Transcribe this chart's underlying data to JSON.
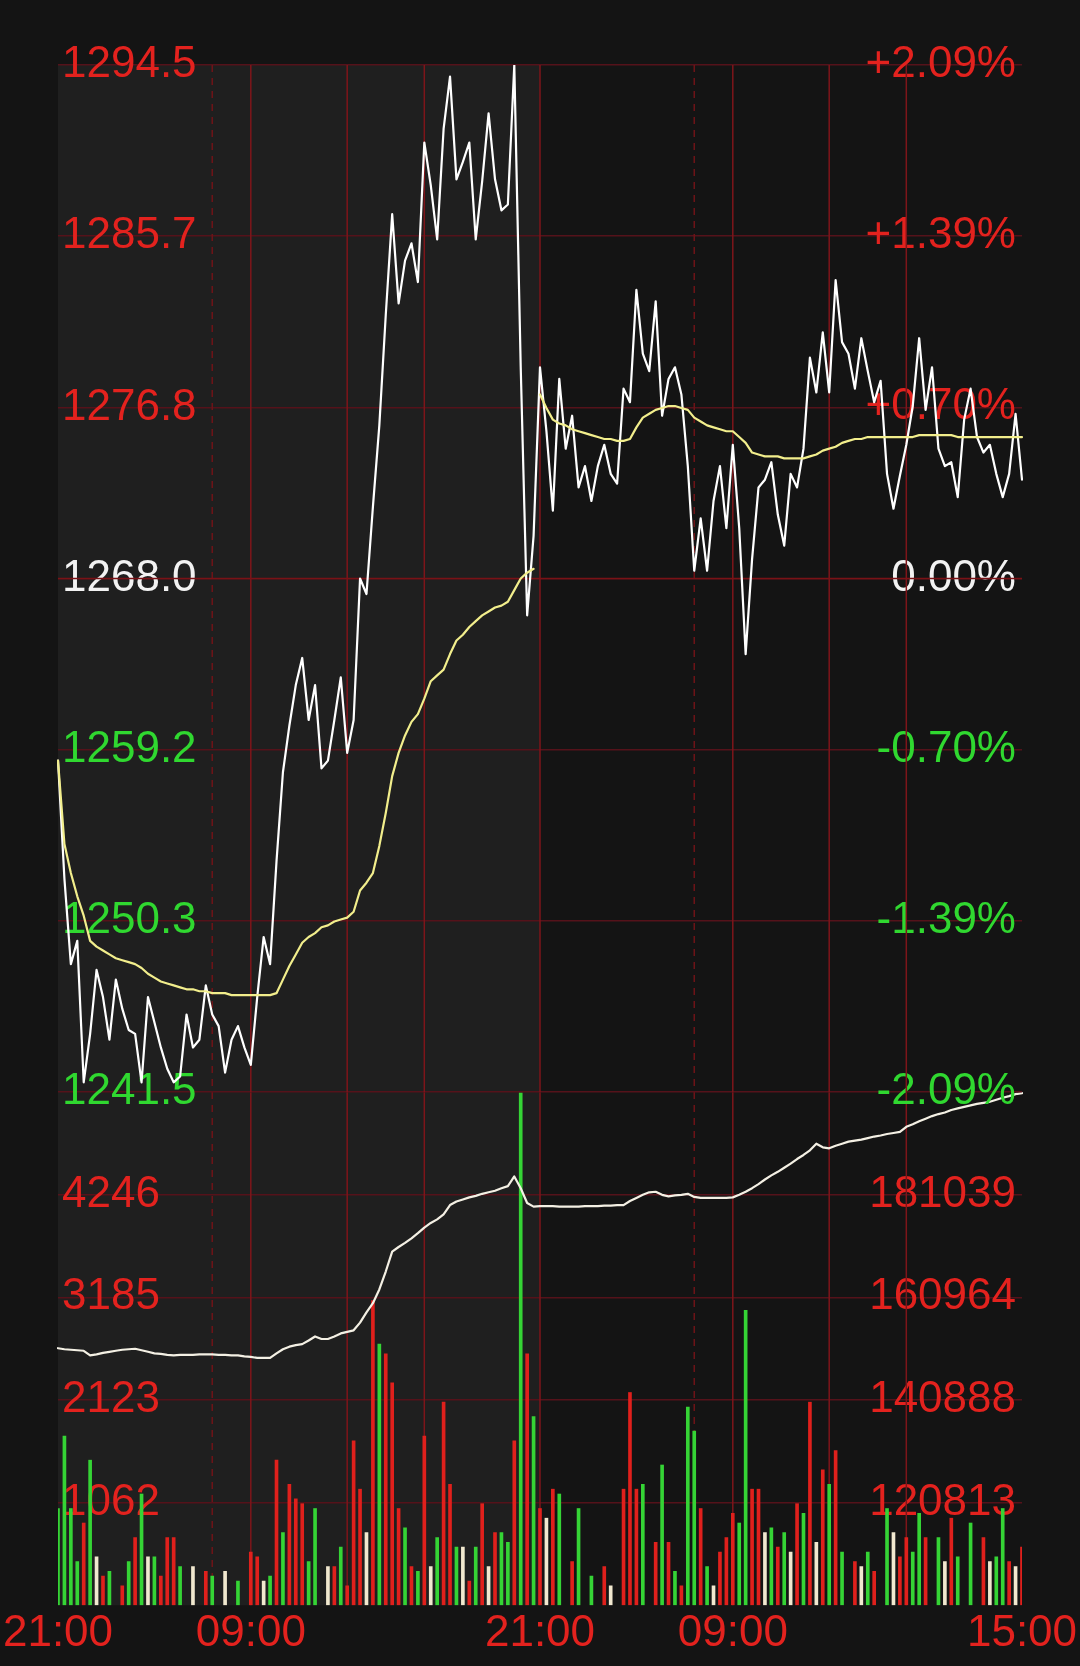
{
  "chart_data": [
    {
      "type": "line",
      "categories": [
        null,
        null,
        null,
        null,
        null,
        null,
        null,
        null,
        null,
        null,
        null,
        null,
        null,
        null,
        null,
        null,
        null,
        null,
        null,
        null,
        null,
        null,
        null,
        null,
        null,
        null,
        null,
        null,
        null,
        null,
        null,
        null,
        null,
        null,
        null,
        null,
        null,
        null,
        null,
        null,
        null,
        null,
        null,
        null,
        null,
        null,
        null,
        null,
        null,
        null,
        null,
        null,
        null,
        null,
        null,
        null,
        null,
        null,
        null,
        null,
        null,
        null,
        null,
        null,
        null,
        null,
        null,
        null,
        null,
        null,
        null,
        null,
        null,
        null,
        null,
        null,
        null,
        null,
        null,
        null,
        null,
        null,
        null,
        null,
        null,
        null,
        null,
        null,
        null,
        null,
        null,
        null,
        null,
        null,
        null,
        null,
        null,
        null,
        null,
        null,
        null,
        null,
        null,
        null,
        null,
        null,
        null,
        null,
        null,
        null,
        null,
        null,
        null,
        null,
        null,
        null,
        null,
        null,
        null,
        null,
        null,
        null,
        null,
        null,
        null,
        null,
        null,
        null,
        null,
        null,
        null,
        null,
        null,
        null,
        null,
        null,
        null,
        null,
        null,
        null,
        null,
        null,
        null,
        null,
        null,
        null,
        null,
        null,
        null,
        null,
        null
      ],
      "ylim": [
        1241.5,
        1294.5
      ],
      "yticks": [
        1294.5,
        {
          "value": 1285.67,
          "label": "1285.7"
        },
        {
          "value": 1276.83,
          "label": "1276.8"
        },
        {
          "value": 1268,
          "label": "1268.0"
        },
        {
          "value": 1259.17,
          "label": "1259.2"
        },
        {
          "value": 1250.33,
          "label": "1250.3"
        },
        1241.5
      ],
      "y2lim": [
        -2.09,
        2.09
      ],
      "y2ticks": [
        {
          "value": 2.09,
          "label": "+2.09%"
        },
        {
          "value": 1.3933,
          "label": "+1.39%"
        },
        {
          "value": 0.6967,
          "label": "+0.70%"
        },
        {
          "value": 0,
          "label": "0.00%"
        },
        {
          "value": -0.6967,
          "label": "-0.70%"
        },
        {
          "value": -1.3933,
          "label": "-1.39%"
        },
        {
          "value": -2.09,
          "label": "-2.09%"
        }
      ],
      "grid": "y",
      "marker": "none",
      "ref_lines": [
        {
          "axis": "y",
          "value": 1268,
          "color": "#7a1216"
        }
      ],
      "series": [
        {
          "color": "#ffffff",
          "values": [
            1258.6,
            1252.5,
            1248.1,
            1249.3,
            1242.0,
            1244.5,
            1247.8,
            1246.4,
            1244.2,
            1247.3,
            1245.8,
            1244.7,
            1244.5,
            1242.0,
            1246.4,
            1245.1,
            1243.8,
            1242.7,
            1242.0,
            1242.3,
            1245.5,
            1243.8,
            1244.2,
            1247.0,
            1245.5,
            1244.9,
            1242.5,
            1244.2,
            1244.9,
            1243.8,
            1242.9,
            1246.4,
            1249.5,
            1248.1,
            1253.4,
            1258.0,
            1260.4,
            1262.5,
            1263.9,
            1260.7,
            1262.5,
            1258.2,
            1258.6,
            1260.7,
            1262.9,
            1259.0,
            1260.7,
            1268.0,
            1267.2,
            1271.7,
            1275.9,
            1281.6,
            1286.8,
            1282.2,
            1284.4,
            1285.3,
            1283.3,
            1290.5,
            1288.3,
            1285.5,
            1291.2,
            1293.9,
            1288.6,
            1289.5,
            1290.5,
            1285.5,
            1288.5,
            1292.0,
            1288.6,
            1287.0,
            1287.3,
            1294.5,
            1278.9,
            1266.1,
            1270.2,
            1278.9,
            1275.6,
            1271.5,
            1278.3,
            1274.7,
            1276.4,
            1272.7,
            1273.8,
            1272.0,
            1273.8,
            1274.9,
            1273.4,
            1272.9,
            1277.8,
            1277.1,
            1282.9,
            1279.6,
            1278.7,
            1282.3,
            1276.4,
            1278.3,
            1278.9,
            1277.5,
            1273.8,
            1268.4,
            1271.1,
            1268.4,
            1272.0,
            1273.8,
            1270.6,
            1274.9,
            1270.6,
            1264.1,
            1269.0,
            1272.7,
            1273.1,
            1274.0,
            1271.3,
            1269.7,
            1273.4,
            1272.7,
            1274.7,
            1279.4,
            1277.6,
            1280.7,
            1277.6,
            1283.4,
            1280.2,
            1279.6,
            1277.8,
            1280.4,
            1278.7,
            1277.1,
            1278.2,
            1273.4,
            1271.6,
            1273.3,
            1274.9,
            1276.9,
            1280.4,
            1276.7,
            1278.9,
            1274.7,
            1273.8,
            1274.0,
            1272.2,
            1276.2,
            1277.8,
            1275.3,
            1274.5,
            1274.9,
            1273.4,
            1272.2,
            1273.4,
            1276.5,
            1273.1
          ]
        },
        {
          "color": "#f2ee8c",
          "values": [
            1258.6,
            1254.3,
            1252.8,
            1251.6,
            1250.6,
            1249.3,
            1249.0,
            1248.8,
            1248.6,
            1248.4,
            1248.3,
            1248.2,
            1248.1,
            1247.9,
            1247.6,
            1247.4,
            1247.2,
            1247.1,
            1247.0,
            1246.9,
            1246.8,
            1246.8,
            1246.7,
            1246.7,
            1246.6,
            1246.6,
            1246.6,
            1246.5,
            1246.5,
            1246.5,
            1246.5,
            1246.5,
            1246.5,
            1246.5,
            1246.6,
            1247.3,
            1248.0,
            1248.6,
            1249.2,
            1249.5,
            1249.7,
            1250.0,
            1250.1,
            1250.3,
            1250.4,
            1250.5,
            1250.8,
            1251.9,
            1252.3,
            1252.8,
            1254.2,
            1255.9,
            1257.8,
            1259.0,
            1259.9,
            1260.6,
            1261.0,
            1261.8,
            1262.7,
            1263.0,
            1263.3,
            1264.1,
            1264.8,
            1265.1,
            1265.5,
            1265.8,
            1266.1,
            1266.3,
            1266.5,
            1266.6,
            1266.8,
            1267.4,
            1268.0,
            1268.3,
            1268.5,
            null,
            null,
            null,
            null,
            null,
            null,
            null,
            null,
            null,
            null,
            null,
            null,
            null,
            null,
            null,
            null,
            null,
            null,
            null,
            null,
            null,
            null,
            null,
            null,
            null,
            null,
            null,
            null,
            null,
            null,
            null,
            null,
            null,
            null,
            null,
            null,
            null,
            null,
            null,
            null,
            null,
            null,
            null,
            null,
            null,
            null,
            null,
            null,
            null,
            null,
            null,
            null,
            null,
            null,
            null,
            null,
            null,
            null,
            null,
            null,
            null,
            null,
            null,
            null,
            null,
            null,
            null,
            null,
            null,
            null,
            null,
            null,
            null,
            null,
            null,
            null
          ]
        },
        {
          "color": "#f2ee8c",
          "values": [
            null,
            null,
            null,
            null,
            null,
            null,
            null,
            null,
            null,
            null,
            null,
            null,
            null,
            null,
            null,
            null,
            null,
            null,
            null,
            null,
            null,
            null,
            null,
            null,
            null,
            null,
            null,
            null,
            null,
            null,
            null,
            null,
            null,
            null,
            null,
            null,
            null,
            null,
            null,
            null,
            null,
            null,
            null,
            null,
            null,
            null,
            null,
            null,
            null,
            null,
            null,
            null,
            null,
            null,
            null,
            null,
            null,
            null,
            null,
            null,
            null,
            null,
            null,
            null,
            null,
            null,
            null,
            null,
            null,
            null,
            null,
            null,
            null,
            null,
            null,
            1277.5,
            1276.8,
            1276.2,
            1276.0,
            1275.9,
            1275.7,
            1275.6,
            1275.5,
            1275.4,
            1275.3,
            1275.2,
            1275.2,
            1275.1,
            1275.1,
            1275.2,
            1275.8,
            1276.3,
            1276.5,
            1276.7,
            1276.8,
            1276.9,
            1276.9,
            1276.8,
            1276.7,
            1276.3,
            1276.1,
            1275.9,
            1275.8,
            1275.7,
            1275.6,
            1275.6,
            1275.3,
            1275.0,
            1274.5,
            1274.4,
            1274.3,
            1274.3,
            1274.3,
            1274.2,
            1274.2,
            1274.2,
            1274.2,
            1274.3,
            1274.4,
            1274.6,
            1274.7,
            1274.8,
            1275.0,
            1275.1,
            1275.2,
            1275.2,
            1275.3,
            1275.3,
            1275.3,
            1275.3,
            1275.3,
            1275.3,
            1275.3,
            1275.3,
            1275.4,
            1275.4,
            1275.4,
            1275.4,
            1275.4,
            1275.4,
            1275.3,
            1275.3,
            1275.3,
            1275.3,
            1275.3,
            1275.3,
            1275.3,
            1275.3,
            1275.3,
            1275.3,
            1275.3
          ]
        }
      ]
    },
    {
      "type": "bar",
      "categories": [
        "21:00",
        null,
        null,
        null,
        null,
        null,
        null,
        null,
        null,
        null,
        null,
        null,
        null,
        null,
        null,
        null,
        null,
        null,
        null,
        null,
        null,
        null,
        null,
        null,
        null,
        null,
        null,
        null,
        null,
        null,
        "09:00",
        null,
        null,
        null,
        null,
        null,
        null,
        null,
        null,
        null,
        null,
        null,
        null,
        null,
        null,
        null,
        null,
        null,
        null,
        null,
        null,
        null,
        null,
        null,
        null,
        null,
        null,
        null,
        null,
        null,
        null,
        null,
        null,
        null,
        null,
        null,
        null,
        null,
        null,
        null,
        null,
        null,
        null,
        null,
        null,
        "21:00",
        null,
        null,
        null,
        null,
        null,
        null,
        null,
        null,
        null,
        null,
        null,
        null,
        null,
        null,
        null,
        null,
        null,
        null,
        null,
        null,
        null,
        null,
        null,
        null,
        null,
        null,
        null,
        null,
        null,
        "09:00",
        null,
        null,
        null,
        null,
        null,
        null,
        null,
        null,
        null,
        null,
        null,
        null,
        null,
        null,
        null,
        null,
        null,
        null,
        null,
        null,
        null,
        null,
        null,
        null,
        null,
        null,
        null,
        null,
        null,
        null,
        null,
        null,
        null,
        null,
        null,
        null,
        null,
        null,
        null,
        null,
        null,
        null,
        null,
        null,
        "15:00"
      ],
      "ylim": [
        0,
        5308
      ],
      "yticks": [
        1062,
        2123,
        3185,
        4246
      ],
      "y2lim": [
        100738,
        201114
      ],
      "y2ticks": [
        120813,
        140888,
        160964,
        181039
      ],
      "grid": "y",
      "marker": "none",
      "series": [
        {
          "values": [
            1000,
            1750,
            1000,
            450,
            850,
            1500,
            500,
            300,
            350,
            null,
            200,
            450,
            700,
            1150,
            500,
            500,
            300,
            700,
            700,
            400,
            null,
            400,
            null,
            350,
            300,
            null,
            350,
            null,
            250,
            null,
            550,
            500,
            250,
            300,
            1500,
            750,
            1250,
            1100,
            1050,
            450,
            1000,
            null,
            400,
            400,
            600,
            200,
            1700,
            1200,
            750,
            3150,
            2700,
            2600,
            2300,
            1000,
            800,
            400,
            350,
            1750,
            400,
            700,
            2100,
            1250,
            600,
            600,
            250,
            600,
            1050,
            400,
            750,
            750,
            650,
            1700,
            5300,
            2600,
            1950,
            1000,
            900,
            1200,
            1150,
            null,
            450,
            1000,
            null,
            300,
            null,
            400,
            200,
            null,
            1200,
            2200,
            1200,
            1250,
            null,
            650,
            1450,
            650,
            350,
            200,
            2050,
            1800,
            1000,
            400,
            200,
            550,
            700,
            950,
            850,
            3050,
            1200,
            1200,
            750,
            800,
            600,
            750,
            550,
            1050,
            950,
            2100,
            650,
            1400,
            1250,
            1600,
            550,
            null,
            450,
            400,
            550,
            350,
            null,
            1000,
            750,
            500,
            700,
            550,
            950,
            700,
            null,
            700,
            450,
            900,
            500,
            null,
            850,
            null,
            700,
            450,
            500,
            1000,
            450,
            400,
            600
          ],
          "colors": [
            "#35d435",
            "#35d435",
            "#35d435",
            "#35d435",
            "#e0201c",
            "#35d435",
            "#f1e8cf",
            "#e0201c",
            "#35d435",
            null,
            "#e0201c",
            "#35d435",
            "#e0201c",
            "#35d435",
            "#f1e8cf",
            "#35d435",
            "#e0201c",
            "#e0201c",
            "#e0201c",
            "#35d435",
            null,
            "#f1e8cf",
            null,
            "#e0201c",
            "#35d435",
            null,
            "#f1e8cf",
            null,
            "#35d435",
            null,
            "#e0201c",
            "#e0201c",
            "#f1e8cf",
            "#35d435",
            "#e0201c",
            "#35d435",
            "#e0201c",
            "#e0201c",
            "#e0201c",
            "#35d435",
            "#35d435",
            null,
            "#f1e8cf",
            "#e0201c",
            "#35d435",
            "#e0201c",
            "#e0201c",
            "#e0201c",
            "#f1e8cf",
            "#e0201c",
            "#35d435",
            "#e0201c",
            "#e0201c",
            "#e0201c",
            "#35d435",
            "#e0201c",
            "#35d435",
            "#e0201c",
            "#f1e8cf",
            "#35d435",
            "#e0201c",
            "#e0201c",
            "#35d435",
            "#f1e8cf",
            "#e0201c",
            "#35d435",
            "#e0201c",
            "#f1e8cf",
            "#e0201c",
            "#35d435",
            "#35d435",
            "#e0201c",
            "#35d435",
            "#e0201c",
            "#35d435",
            "#e0201c",
            "#f1e8cf",
            "#e0201c",
            "#35d435",
            null,
            "#e0201c",
            "#35d435",
            null,
            "#35d435",
            null,
            "#e0201c",
            "#f1e8cf",
            null,
            "#e0201c",
            "#e0201c",
            "#e0201c",
            "#35d435",
            null,
            "#e0201c",
            "#35d435",
            "#e0201c",
            "#35d435",
            "#e0201c",
            "#35d435",
            "#35d435",
            "#e0201c",
            "#35d435",
            "#f1e8cf",
            "#e0201c",
            "#e0201c",
            "#e0201c",
            "#35d435",
            "#35d435",
            "#e0201c",
            "#e0201c",
            "#f1e8cf",
            "#35d435",
            "#e0201c",
            "#35d435",
            "#f1e8cf",
            "#e0201c",
            "#35d435",
            "#e0201c",
            "#f1e8cf",
            "#e0201c",
            "#35d435",
            "#e0201c",
            "#35d435",
            null,
            "#e0201c",
            "#f1e8cf",
            "#35d435",
            "#e0201c",
            null,
            "#35d435",
            "#f1e8cf",
            "#e0201c",
            "#e0201c",
            "#35d435",
            "#35d435",
            "#e0201c",
            null,
            "#35d435",
            "#f1e8cf",
            "#e0201c",
            "#35d435",
            null,
            "#35d435",
            null,
            "#e0201c",
            "#f1e8cf",
            "#35d435",
            "#35d435",
            "#e0201c",
            "#f1e8cf",
            "#e0201c"
          ]
        },
        {
          "type": "line",
          "axis": "y2",
          "color": "#f4f0e4",
          "values": [
            151000,
            150800,
            150700,
            150600,
            150500,
            149600,
            149800,
            150100,
            150300,
            150500,
            150700,
            150800,
            150900,
            150600,
            150300,
            150000,
            149900,
            149700,
            149600,
            149700,
            149700,
            149700,
            149800,
            149800,
            149800,
            149700,
            149700,
            149600,
            149600,
            149400,
            149300,
            149100,
            149100,
            149100,
            150000,
            150800,
            151300,
            151600,
            151800,
            152500,
            153300,
            152800,
            152800,
            153300,
            153900,
            154200,
            154500,
            156000,
            158000,
            159800,
            162500,
            166000,
            169900,
            170800,
            171600,
            172500,
            173500,
            174600,
            175500,
            176200,
            177200,
            179000,
            179700,
            180100,
            180500,
            180800,
            181200,
            181500,
            181800,
            182300,
            182700,
            184600,
            182300,
            179400,
            178700,
            178800,
            178800,
            178800,
            178700,
            178700,
            178700,
            178700,
            178800,
            178800,
            178800,
            178900,
            178900,
            179000,
            179000,
            179800,
            180400,
            181000,
            181500,
            181600,
            181000,
            180700,
            180900,
            181000,
            181200,
            180600,
            180400,
            180400,
            180400,
            180400,
            180400,
            180500,
            181000,
            181600,
            182300,
            183100,
            184000,
            184800,
            185500,
            186300,
            187100,
            188000,
            188800,
            189700,
            191000,
            190300,
            190100,
            190600,
            191000,
            191400,
            191600,
            191800,
            192100,
            192400,
            192600,
            192900,
            193100,
            193300,
            194300,
            194800,
            195400,
            195900,
            196400,
            196800,
            197100,
            197600,
            197900,
            198200,
            198500,
            198800,
            199000,
            199200,
            199600,
            200000,
            200300,
            200700,
            200900
          ]
        }
      ]
    }
  ]
}
